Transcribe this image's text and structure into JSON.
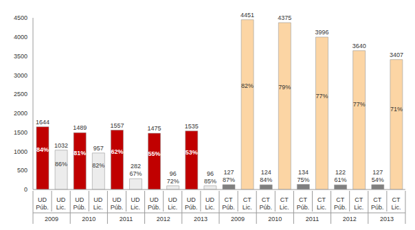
{
  "chart_data": {
    "type": "bar",
    "categories": [
      "UD Púb.",
      "UD Lic.",
      "UD Púb.",
      "UD Lic.",
      "UD Púb.",
      "UD Lic.",
      "UD Púb.",
      "UD Lic.",
      "UD Púb.",
      "UD Lic.",
      "CT Púb.",
      "CT Lic.",
      "CT Púb.",
      "CT Lic.",
      "CT Púb.",
      "CT Lic.",
      "CT Púb.",
      "CT Lic.",
      "CT Púb.",
      "CT Lic."
    ],
    "category_groups": [
      "2009",
      "2009",
      "2010",
      "2010",
      "2011",
      "2011",
      "2012",
      "2012",
      "2013",
      "2013",
      "2009",
      "2009",
      "2010",
      "2010",
      "2011",
      "2011",
      "2012",
      "2012",
      "2013",
      "2013"
    ],
    "values": [
      1644,
      1032,
      1489,
      957,
      1557,
      282,
      1475,
      96,
      1535,
      96,
      127,
      4451,
      124,
      4375,
      134,
      3996,
      122,
      3640,
      127,
      3407
    ],
    "share_labels": [
      "84%",
      "86%",
      "81%",
      "82%",
      "62%",
      "67%",
      "55%",
      "72%",
      "53%",
      "85%",
      "87%",
      "82%",
      "84%",
      "79%",
      "75%",
      "77%",
      "61%",
      "77%",
      "54%",
      "71%"
    ],
    "colors": [
      "#c00000",
      "#ececec",
      "#c00000",
      "#ececec",
      "#c00000",
      "#ececec",
      "#c00000",
      "#ececec",
      "#c00000",
      "#ececec",
      "#7f7f7f",
      "#fcd5a4",
      "#7f7f7f",
      "#fcd5a4",
      "#7f7f7f",
      "#fcd5a4",
      "#7f7f7f",
      "#fcd5a4",
      "#7f7f7f",
      "#fcd5a4"
    ],
    "ylim": [
      0,
      4500
    ],
    "yticks": [
      0,
      500,
      1000,
      1500,
      2000,
      2500,
      3000,
      3500,
      4000,
      4500
    ],
    "grid": false,
    "data_labels": true
  }
}
